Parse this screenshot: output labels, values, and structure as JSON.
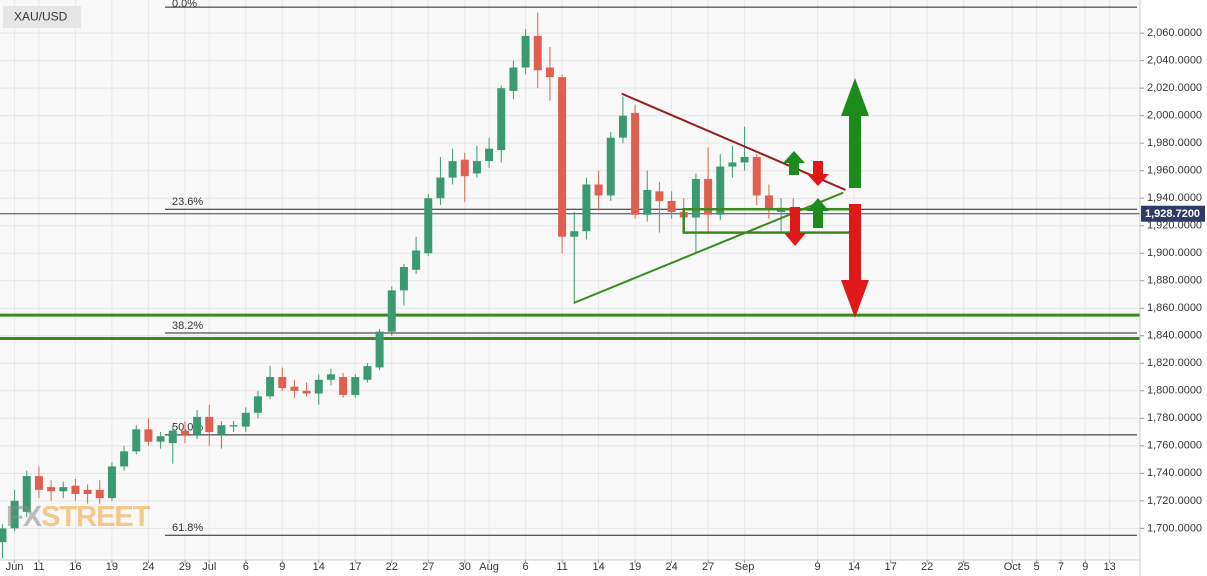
{
  "chart_data": {
    "type": "candlestick",
    "symbol": "XAU/USD",
    "watermark": [
      "FX",
      "STREET"
    ],
    "up_color": "#3c9a73",
    "down_color": "#e0604f",
    "x": [
      0,
      1,
      2,
      3,
      4,
      5,
      6,
      7,
      8,
      9,
      10,
      11,
      12,
      13,
      14,
      15,
      16,
      17,
      18,
      19,
      20,
      21,
      22,
      23,
      24,
      25,
      26,
      27,
      28,
      29,
      30,
      31,
      32,
      33,
      34,
      35,
      36,
      37,
      38,
      39,
      40,
      41,
      42,
      43,
      44,
      45,
      46,
      47,
      48,
      49,
      50,
      51,
      52,
      53,
      54,
      55,
      56,
      57,
      58,
      59,
      60,
      61,
      62,
      63,
      64,
      65
    ],
    "open": [
      1690,
      1700,
      1712,
      1738,
      1730,
      1727,
      1731,
      1728,
      1728,
      1722,
      1745,
      1756,
      1772,
      1763,
      1762,
      1771,
      1768,
      1781,
      1768,
      1774,
      1774,
      1784,
      1796,
      1810,
      1803,
      1800,
      1798,
      1808,
      1810,
      1797,
      1808,
      1817,
      1843,
      1873,
      1888,
      1900,
      1940,
      1955,
      1968,
      1958,
      1967,
      1975,
      2018,
      2035,
      2058,
      2035,
      2028,
      1912,
      1916,
      1950,
      1942,
      1984,
      2002,
      1928,
      1945,
      1938,
      1930,
      1926,
      1954,
      1928,
      1963,
      1966,
      1970,
      1942,
      1930,
      1933
    ],
    "high": [
      1703,
      1728,
      1742,
      1745,
      1735,
      1734,
      1736,
      1732,
      1735,
      1748,
      1760,
      1775,
      1780,
      1770,
      1775,
      1778,
      1786,
      1790,
      1778,
      1778,
      1788,
      1800,
      1818,
      1817,
      1808,
      1806,
      1812,
      1816,
      1813,
      1812,
      1820,
      1845,
      1876,
      1892,
      1912,
      1943,
      1970,
      1976,
      1973,
      1978,
      1984,
      2022,
      2040,
      2063,
      2075,
      2050,
      2030,
      1930,
      1955,
      1960,
      1988,
      2014,
      2008,
      1960,
      1952,
      1945,
      1940,
      1958,
      1977,
      1972,
      1978,
      1992,
      1972,
      1950,
      1940,
      1940
    ],
    "low": [
      1678,
      1698,
      1708,
      1722,
      1720,
      1722,
      1720,
      1718,
      1718,
      1720,
      1742,
      1754,
      1760,
      1758,
      1747,
      1762,
      1765,
      1760,
      1758,
      1770,
      1770,
      1780,
      1794,
      1800,
      1795,
      1796,
      1790,
      1804,
      1795,
      1795,
      1806,
      1815,
      1840,
      1862,
      1885,
      1898,
      1935,
      1950,
      1937,
      1955,
      1962,
      1966,
      2012,
      2030,
      2020,
      2011,
      1900,
      1863,
      1910,
      1931,
      1938,
      1980,
      1925,
      1923,
      1915,
      1925,
      1920,
      1900,
      1914,
      1924,
      1955,
      1960,
      1935,
      1925,
      1915,
      1920
    ],
    "close": [
      1700,
      1720,
      1738,
      1728,
      1727,
      1730,
      1725,
      1725,
      1722,
      1745,
      1756,
      1772,
      1763,
      1767,
      1771,
      1768,
      1781,
      1770,
      1775,
      1775,
      1784,
      1796,
      1810,
      1802,
      1800,
      1798,
      1808,
      1812,
      1797,
      1810,
      1818,
      1843,
      1873,
      1890,
      1902,
      1940,
      1955,
      1967,
      1956,
      1967,
      1976,
      2020,
      2035,
      2058,
      2033,
      2028,
      1912,
      1916,
      1950,
      1942,
      1984,
      2000,
      1928,
      1946,
      1938,
      1930,
      1926,
      1954,
      1928,
      1963,
      1966,
      1970,
      1942,
      1932,
      1933,
      1929
    ],
    "xlim": [
      -0.2,
      93.5
    ],
    "xticks": [
      {
        "value": 1,
        "label": "Jun"
      },
      {
        "value": 3,
        "label": "11"
      },
      {
        "value": 6,
        "label": "16"
      },
      {
        "value": 9,
        "label": "19"
      },
      {
        "value": 12,
        "label": "24"
      },
      {
        "value": 15,
        "label": "29"
      },
      {
        "value": 17,
        "label": "Jul"
      },
      {
        "value": 20,
        "label": "6"
      },
      {
        "value": 23,
        "label": "9"
      },
      {
        "value": 26,
        "label": "14"
      },
      {
        "value": 29,
        "label": "17"
      },
      {
        "value": 32,
        "label": "22"
      },
      {
        "value": 35,
        "label": "27"
      },
      {
        "value": 38,
        "label": "30"
      },
      {
        "value": 40,
        "label": "Aug"
      },
      {
        "value": 43,
        "label": "6"
      },
      {
        "value": 46,
        "label": "11"
      },
      {
        "value": 49,
        "label": "14"
      },
      {
        "value": 52,
        "label": "19"
      },
      {
        "value": 55,
        "label": "24"
      },
      {
        "value": 58,
        "label": "27"
      },
      {
        "value": 61,
        "label": "Sep"
      },
      {
        "value": 67,
        "label": "9"
      },
      {
        "value": 70,
        "label": "14"
      },
      {
        "value": 73,
        "label": "17"
      },
      {
        "value": 76,
        "label": "22"
      },
      {
        "value": 79,
        "label": "25"
      },
      {
        "value": 83,
        "label": "Oct"
      },
      {
        "value": 85,
        "label": "5"
      },
      {
        "value": 87,
        "label": "7"
      },
      {
        "value": 89,
        "label": "9"
      },
      {
        "value": 91,
        "label": "13"
      }
    ],
    "ylim": [
      1677,
      2079
    ],
    "yticks": [
      {
        "value": 1700,
        "label": "1,700.0000"
      },
      {
        "value": 1720,
        "label": "1,720.0000"
      },
      {
        "value": 1740,
        "label": "1,740.0000"
      },
      {
        "value": 1760,
        "label": "1,760.0000"
      },
      {
        "value": 1780,
        "label": "1,780.0000"
      },
      {
        "value": 1800,
        "label": "1,800.0000"
      },
      {
        "value": 1820,
        "label": "1,820.0000"
      },
      {
        "value": 1840,
        "label": "1,840.0000"
      },
      {
        "value": 1860,
        "label": "1,860.0000"
      },
      {
        "value": 1880,
        "label": "1,880.0000"
      },
      {
        "value": 1900,
        "label": "1,900.0000"
      },
      {
        "value": 1920,
        "label": "1,920.0000"
      },
      {
        "value": 1940,
        "label": "1,940.0000"
      },
      {
        "value": 1960,
        "label": "1,960.0000"
      },
      {
        "value": 1980,
        "label": "1,980.0000"
      },
      {
        "value": 2000,
        "label": "2,000.0000"
      },
      {
        "value": 2020,
        "label": "2,020.0000"
      },
      {
        "value": 2040,
        "label": "2,040.0000"
      },
      {
        "value": 2060,
        "label": "2,060.0000"
      }
    ],
    "grid": true,
    "last_price": {
      "value": 1928.72,
      "label": "1,928.7200"
    },
    "fib_levels": [
      {
        "label": "0.0%",
        "value": 2078.9
      },
      {
        "label": "23.6%",
        "value": 1932
      },
      {
        "label": "38.2%",
        "value": 1842
      },
      {
        "label": "50.0%",
        "value": 1768
      },
      {
        "label": "61.8%",
        "value": 1695
      }
    ],
    "levels": [
      {
        "value": 1855,
        "color": "#3a8a1e"
      },
      {
        "value": 1838,
        "color": "#3a8a1e"
      }
    ],
    "trendlines": [
      {
        "color": "#9b1c1c",
        "x": [
          50.9,
          69.3
        ],
        "y": [
          2016,
          1946
        ]
      },
      {
        "color": "#3a8a1e",
        "x": [
          47,
          69.1
        ],
        "y": [
          1864,
          1944
        ]
      }
    ],
    "boxes": [
      {
        "color": "#3a8a1e",
        "x": [
          56,
          69.8
        ],
        "y": [
          1915,
          1932
        ]
      }
    ]
  }
}
